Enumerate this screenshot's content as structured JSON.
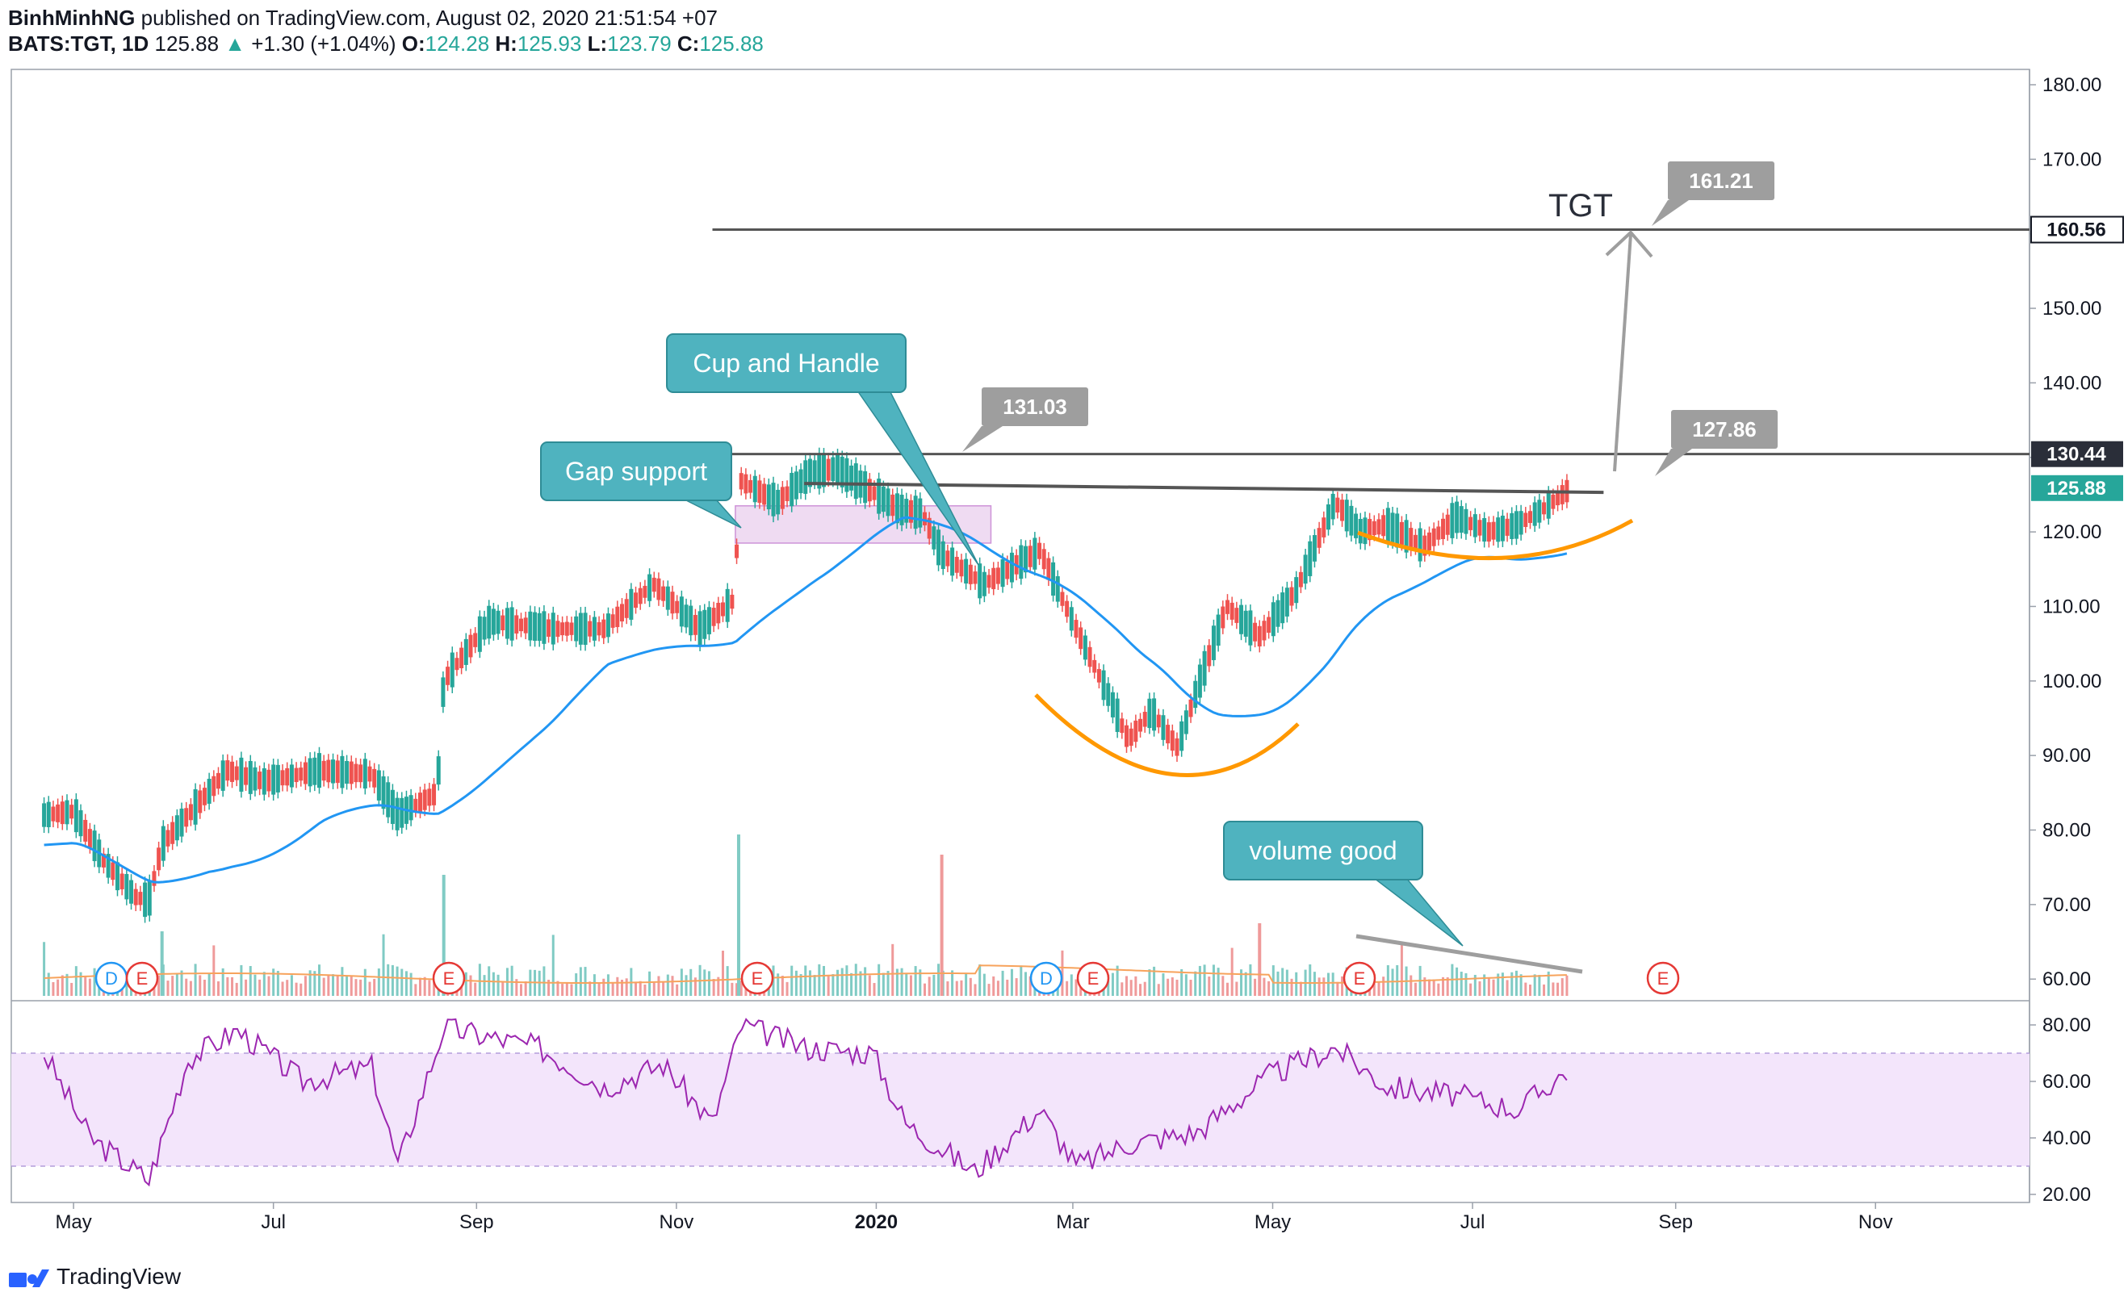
{
  "header": {
    "author": "BinhMinhNG",
    "published": "published on TradingView.com, August 02, 2020 21:51:54 +07",
    "symbol": "BATS:TGT, 1D",
    "last": "125.88",
    "arrow": "▲",
    "change": "+1.30 (+1.04%)",
    "open_label": "O:",
    "open": "124.28",
    "high_label": "H:",
    "high": "125.93",
    "low_label": "L:",
    "low": "123.79",
    "close_label": "C:",
    "close": "125.88"
  },
  "footer": {
    "brand": "TradingView"
  },
  "colors": {
    "up": "#26a69a",
    "down": "#ef5350",
    "ma": "#2196f3",
    "vol_ma": "#f7a35c",
    "rsi": "#9c27b0",
    "rsi_band": "#f3e5fb",
    "annotation": "#4fb3bf",
    "price_line": "#555555",
    "label_gray": "#9e9e9e",
    "cup": "#ff9800",
    "gap_box": "#e1bee7"
  },
  "chart_data": {
    "type": "candlestick",
    "title": "",
    "price_axis": {
      "ylim": [
        56,
        182
      ],
      "ticks": [
        "180.00",
        "170.00",
        "160.00",
        "150.00",
        "140.00",
        "130.00",
        "120.00",
        "110.00",
        "100.00",
        "90.00",
        "80.00",
        "70.00",
        "60.00"
      ]
    },
    "rsi_axis": {
      "ylim": [
        18,
        86
      ],
      "ticks": [
        "80.00",
        "60.00",
        "40.00",
        "20.00"
      ],
      "bands": [
        30,
        70
      ]
    },
    "time_axis": {
      "labels": [
        "May",
        "Jul",
        "Sep",
        "Nov",
        "2020",
        "Mar",
        "May",
        "Jul",
        "Sep",
        "Nov"
      ]
    },
    "price_labels": {
      "target_line": "160.56",
      "resistance_line": "130.44",
      "last_price": "125.88"
    },
    "callouts": {
      "cup_handle": "Cup and Handle",
      "gap_support": "Gap support",
      "volume_good": "volume good",
      "ticker": "TGT",
      "target_value": "161.21",
      "resistance_value": "131.03",
      "handle_value": "127.86"
    },
    "events": [
      {
        "label": "D",
        "kind": "dividend"
      },
      {
        "label": "E",
        "kind": "earnings"
      },
      {
        "label": "E",
        "kind": "earnings"
      },
      {
        "label": "E",
        "kind": "earnings"
      },
      {
        "label": "D",
        "kind": "dividend"
      },
      {
        "label": "E",
        "kind": "earnings"
      },
      {
        "label": "E",
        "kind": "earnings"
      },
      {
        "label": "E",
        "kind": "earnings"
      }
    ],
    "price_path": [
      [
        "2019-04-22",
        82
      ],
      [
        "2019-05-01",
        82.5
      ],
      [
        "2019-05-10",
        76
      ],
      [
        "2019-05-20",
        71
      ],
      [
        "2019-05-24",
        70.5
      ],
      [
        "2019-05-28",
        78
      ],
      [
        "2019-06-07",
        83
      ],
      [
        "2019-06-17",
        88
      ],
      [
        "2019-06-28",
        86.5
      ],
      [
        "2019-07-15",
        88
      ],
      [
        "2019-07-31",
        87.5
      ],
      [
        "2019-08-08",
        82
      ],
      [
        "2019-08-20",
        85
      ],
      [
        "2019-08-22",
        100
      ],
      [
        "2019-09-05",
        108
      ],
      [
        "2019-09-25",
        107
      ],
      [
        "2019-10-10",
        107
      ],
      [
        "2019-10-25",
        113
      ],
      [
        "2019-11-08",
        107
      ],
      [
        "2019-11-19",
        111
      ],
      [
        "2019-11-20",
        127
      ],
      [
        "2019-12-02",
        124
      ],
      [
        "2019-12-12",
        128
      ],
      [
        "2019-12-20",
        128.5
      ],
      [
        "2020-01-08",
        123
      ],
      [
        "2020-01-15",
        122.5
      ],
      [
        "2020-01-21",
        117
      ],
      [
        "2020-02-03",
        113
      ],
      [
        "2020-02-20",
        117.5
      ],
      [
        "2020-03-02",
        107
      ],
      [
        "2020-03-12",
        98
      ],
      [
        "2020-03-18",
        92
      ],
      [
        "2020-03-25",
        96
      ],
      [
        "2020-04-02",
        91
      ],
      [
        "2020-04-08",
        99
      ],
      [
        "2020-04-17",
        110
      ],
      [
        "2020-04-27",
        106
      ],
      [
        "2020-05-08",
        112
      ],
      [
        "2020-05-20",
        124
      ],
      [
        "2020-05-28",
        120
      ],
      [
        "2020-06-05",
        121
      ],
      [
        "2020-06-16",
        118
      ],
      [
        "2020-06-26",
        122
      ],
      [
        "2020-07-06",
        120
      ],
      [
        "2020-07-15",
        121
      ],
      [
        "2020-07-24",
        123.5
      ],
      [
        "2020-07-31",
        125.88
      ]
    ],
    "rsi_path": [
      [
        "2019-04-22",
        70
      ],
      [
        "2019-05-06",
        40
      ],
      [
        "2019-05-24",
        25
      ],
      [
        "2019-06-05",
        68
      ],
      [
        "2019-06-20",
        78
      ],
      [
        "2019-07-10",
        60
      ],
      [
        "2019-07-31",
        65
      ],
      [
        "2019-08-08",
        30
      ],
      [
        "2019-08-22",
        79
      ],
      [
        "2019-09-20",
        72
      ],
      [
        "2019-10-10",
        58
      ],
      [
        "2019-10-28",
        66
      ],
      [
        "2019-11-12",
        45
      ],
      [
        "2019-11-21",
        80
      ],
      [
        "2019-12-10",
        72
      ],
      [
        "2019-12-31",
        70
      ],
      [
        "2020-01-10",
        45
      ],
      [
        "2020-01-31",
        28
      ],
      [
        "2020-02-20",
        50
      ],
      [
        "2020-03-02",
        30
      ],
      [
        "2020-03-18",
        38
      ],
      [
        "2020-04-08",
        42
      ],
      [
        "2020-04-30",
        62
      ],
      [
        "2020-05-20",
        72
      ],
      [
        "2020-06-05",
        58
      ],
      [
        "2020-06-26",
        55
      ],
      [
        "2020-07-15",
        50
      ],
      [
        "2020-07-31",
        65
      ]
    ]
  }
}
